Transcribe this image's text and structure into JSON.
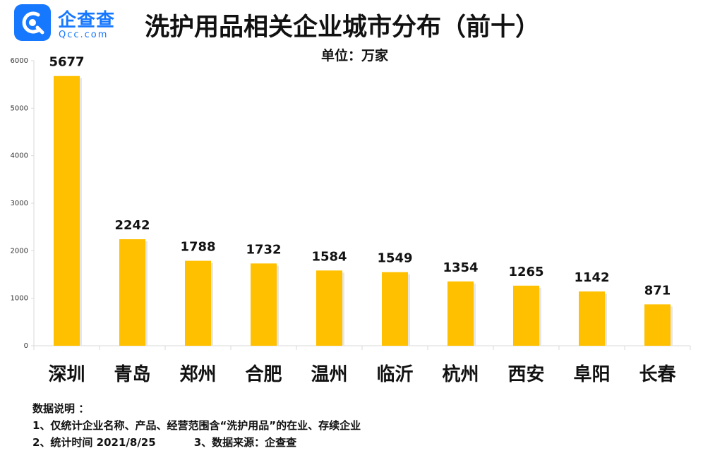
{
  "logo": {
    "brand": "企查查",
    "brand_en": "Qcc.com",
    "icon": "qcc-logo-icon"
  },
  "title": "洗护用品相关企业城市分布（前十）",
  "unit_label": "单位：万家",
  "notes": {
    "heading": "数据说明 ：",
    "line1": "1、仅统计企业名称、产品、经营范围含“洗护用品”的在业、存续企业",
    "line2a": "2、统计时间  2021/8/25",
    "line2b": "3、数据来源：企查查"
  },
  "colors": {
    "bar": "#ffc000",
    "axis": "#d9d9d9",
    "brand": "#1677ff"
  },
  "chart_data": {
    "type": "bar",
    "categories": [
      "深圳",
      "青岛",
      "郑州",
      "合肥",
      "温州",
      "临沂",
      "杭州",
      "西安",
      "阜阳",
      "长春"
    ],
    "values": [
      5677,
      2242,
      1788,
      1732,
      1584,
      1549,
      1354,
      1265,
      1142,
      871
    ],
    "ylim": [
      0,
      6000
    ],
    "yticks": [
      0,
      1000,
      2000,
      3000,
      4000,
      5000,
      6000
    ],
    "data_labels": true,
    "grid": false,
    "legend": "none"
  }
}
